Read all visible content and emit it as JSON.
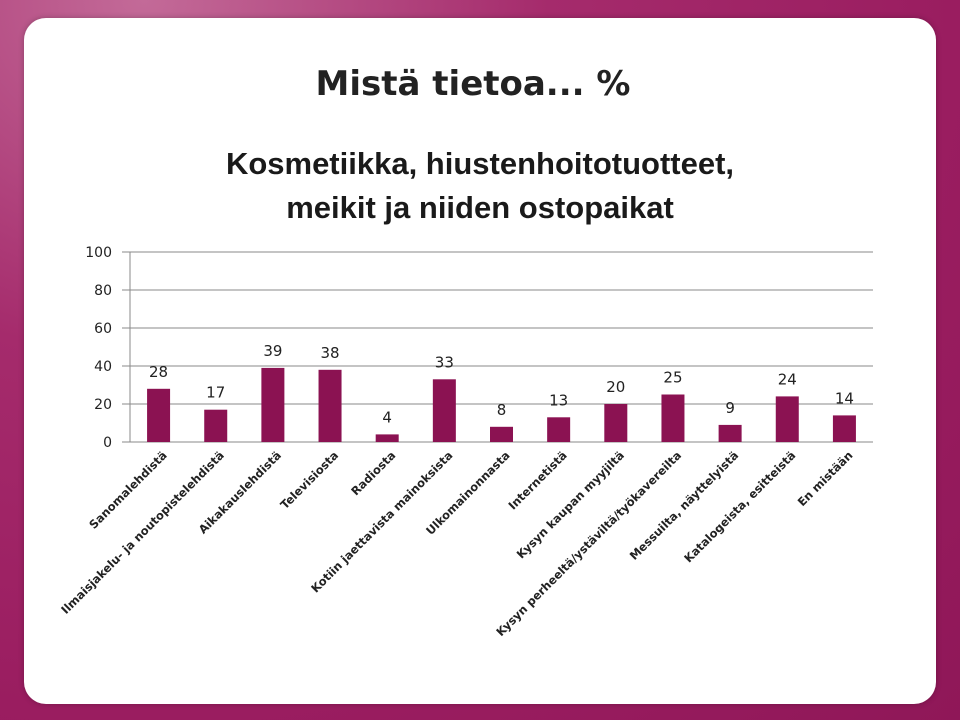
{
  "slide": {
    "title": "Mistä tietoa... %"
  },
  "chart_data": {
    "type": "bar",
    "title_lines": [
      "Kosmetiikka, hiustenhoitotuotteet,",
      "meikit ja niiden ostopaikat"
    ],
    "categories": [
      "Sanomalehdistä",
      "Ilmaisjakelu- ja noutopistelehdistä",
      "Aikakauslehdistä",
      "Televisiosta",
      "Radiosta",
      "Kotiin jaettavista mainoksista",
      "Ulkomainonnasta",
      "Internetistä",
      "Kysyn kaupan myyjiltä",
      "Kysyn perheeltä/ystäviltä/työkavereilta",
      "Messuilta, näyttelyistä",
      "Katalogeista, esitteistä",
      "En mistään"
    ],
    "values": [
      28,
      17,
      39,
      38,
      4,
      33,
      8,
      13,
      20,
      25,
      9,
      24,
      14
    ],
    "ylim": [
      0,
      100
    ],
    "yticks": [
      "0",
      "20",
      "40",
      "60",
      "80",
      "100"
    ],
    "grid": true,
    "colors": {
      "bar": "#8b1252",
      "grid": "#8a8a8a"
    }
  }
}
